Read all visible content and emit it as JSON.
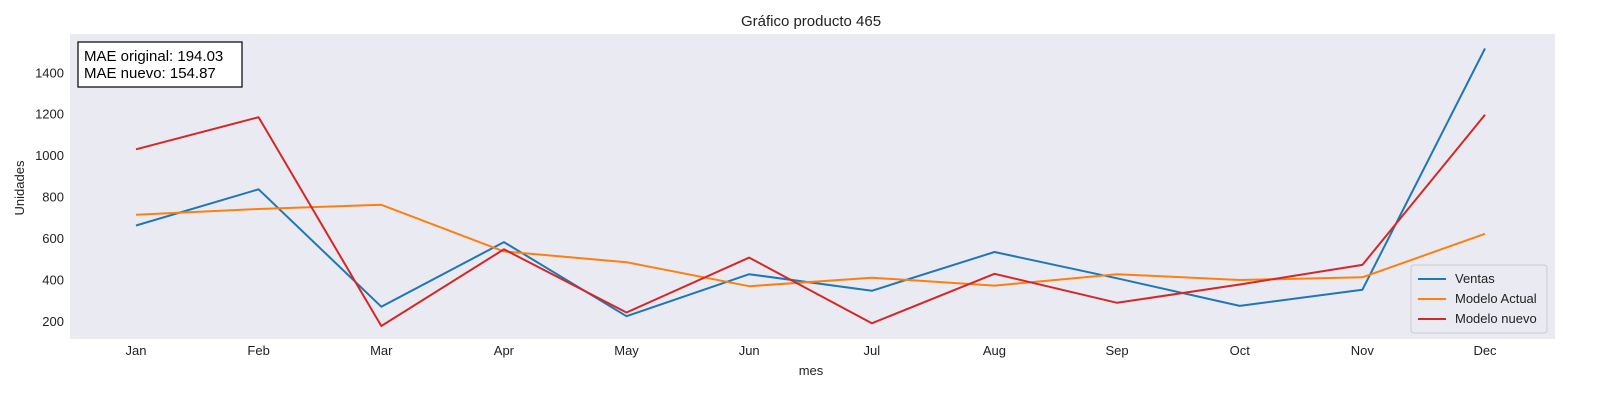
{
  "chart_data": {
    "type": "line",
    "title": "Gráfico producto 465",
    "xlabel": "mes",
    "ylabel": "Unidades",
    "categories": [
      "Jan",
      "Feb",
      "Mar",
      "Apr",
      "May",
      "Jun",
      "Jul",
      "Aug",
      "Sep",
      "Oct",
      "Nov",
      "Dec"
    ],
    "yticks": [
      200,
      400,
      600,
      800,
      1000,
      1200,
      1400
    ],
    "ylim": [
      112,
      1585
    ],
    "grid": false,
    "legend_position": "lower-right",
    "annotation": [
      "MAE original: 194.03",
      "MAE nuevo: 154.87"
    ],
    "background_color": "#eaeaf2",
    "series": [
      {
        "name": "Ventas",
        "color": "#1f77b4",
        "values": [
          660,
          835,
          268,
          580,
          222,
          425,
          345,
          532,
          405,
          272,
          350,
          1515
        ]
      },
      {
        "name": "Modelo Actual",
        "color": "#ff7f0e",
        "values": [
          712,
          740,
          760,
          535,
          483,
          367,
          408,
          370,
          425,
          397,
          410,
          620
        ]
      },
      {
        "name": "Modelo nuevo",
        "color": "#d62728",
        "values": [
          1028,
          1183,
          175,
          545,
          240,
          505,
          188,
          427,
          287,
          375,
          470,
          1195
        ]
      }
    ]
  }
}
